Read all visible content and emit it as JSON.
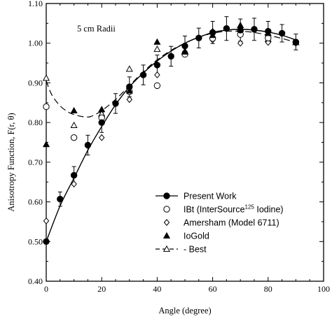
{
  "chart_data": {
    "type": "scatter",
    "title": "",
    "annotation": "5 cm Radii",
    "xlabel": "Angle (degree)",
    "ylabel": "Anisotropy Function, F(r, θ)",
    "xlim": [
      0,
      100
    ],
    "ylim": [
      0.4,
      1.1
    ],
    "xticks": [
      0,
      20,
      40,
      60,
      80,
      100
    ],
    "yticks": [
      0.4,
      0.5,
      0.6,
      0.7,
      0.8,
      0.9,
      1.0,
      1.1
    ],
    "x_tick_labels": [
      "0",
      "20",
      "40",
      "60",
      "80",
      "100"
    ],
    "y_tick_labels": [
      "0.40",
      "0.50",
      "0.60",
      "0.70",
      "0.80",
      "0.90",
      "1.00",
      "1.10"
    ],
    "grid": false,
    "legend_position": "bottom-right",
    "series": [
      {
        "name": "Present Work",
        "marker": "filled-circle",
        "line": "solid",
        "points": [
          {
            "x": 0,
            "y": 0.5,
            "err": 0.0
          },
          {
            "x": 5,
            "y": 0.607,
            "err": 0.018
          },
          {
            "x": 10,
            "y": 0.667,
            "err": 0.022
          },
          {
            "x": 15,
            "y": 0.743,
            "err": 0.025
          },
          {
            "x": 20,
            "y": 0.8,
            "err": 0.025
          },
          {
            "x": 25,
            "y": 0.848,
            "err": 0.025
          },
          {
            "x": 30,
            "y": 0.89,
            "err": 0.025
          },
          {
            "x": 35,
            "y": 0.92,
            "err": 0.025
          },
          {
            "x": 40,
            "y": 0.945,
            "err": 0.025
          },
          {
            "x": 45,
            "y": 0.967,
            "err": 0.025
          },
          {
            "x": 50,
            "y": 0.993,
            "err": 0.025
          },
          {
            "x": 55,
            "y": 1.013,
            "err": 0.025
          },
          {
            "x": 60,
            "y": 1.027,
            "err": 0.028
          },
          {
            "x": 65,
            "y": 1.037,
            "err": 0.03
          },
          {
            "x": 70,
            "y": 1.033,
            "err": 0.028
          },
          {
            "x": 75,
            "y": 1.035,
            "err": 0.028
          },
          {
            "x": 80,
            "y": 1.03,
            "err": 0.025
          },
          {
            "x": 85,
            "y": 1.025,
            "err": 0.022
          },
          {
            "x": 90,
            "y": 1.003,
            "err": 0.02
          }
        ],
        "curve": [
          [
            0,
            0.5
          ],
          [
            5,
            0.59
          ],
          [
            10,
            0.66
          ],
          [
            15,
            0.73
          ],
          [
            20,
            0.79
          ],
          [
            25,
            0.845
          ],
          [
            30,
            0.89
          ],
          [
            35,
            0.925
          ],
          [
            40,
            0.955
          ],
          [
            45,
            0.98
          ],
          [
            50,
            1.0
          ],
          [
            55,
            1.015
          ],
          [
            60,
            1.027
          ],
          [
            65,
            1.033
          ],
          [
            70,
            1.035
          ],
          [
            75,
            1.033
          ],
          [
            80,
            1.028
          ],
          [
            85,
            1.02
          ],
          [
            90,
            1.008
          ]
        ]
      },
      {
        "name": "IBt (InterSource",
        "name_superscript": "125",
        "name_suffix": " Iodine)",
        "marker": "open-circle",
        "points": [
          {
            "x": 0,
            "y": 0.84
          },
          {
            "x": 10,
            "y": 0.762
          },
          {
            "x": 20,
            "y": 0.812
          },
          {
            "x": 30,
            "y": 0.878
          },
          {
            "x": 40,
            "y": 0.893
          },
          {
            "x": 50,
            "y": 0.972
          },
          {
            "x": 60,
            "y": 1.012
          },
          {
            "x": 70,
            "y": 1.022
          },
          {
            "x": 80,
            "y": 1.013
          },
          {
            "x": 90,
            "y": 1.002
          }
        ]
      },
      {
        "name": "Amersham (Model 6711)",
        "marker": "open-diamond",
        "points": [
          {
            "x": 0,
            "y": 0.552
          },
          {
            "x": 10,
            "y": 0.645
          },
          {
            "x": 20,
            "y": 0.762
          },
          {
            "x": 30,
            "y": 0.858
          },
          {
            "x": 40,
            "y": 0.92
          },
          {
            "x": 50,
            "y": 0.978
          },
          {
            "x": 60,
            "y": 1.008
          },
          {
            "x": 70,
            "y": 1.0
          },
          {
            "x": 80,
            "y": 1.002
          },
          {
            "x": 90,
            "y": 1.0
          }
        ]
      },
      {
        "name": "IoGold",
        "marker": "filled-triangle",
        "points": [
          {
            "x": 0,
            "y": 0.745
          },
          {
            "x": 10,
            "y": 0.83
          },
          {
            "x": 20,
            "y": 0.833
          },
          {
            "x": 30,
            "y": 0.88
          },
          {
            "x": 40,
            "y": 1.003
          },
          {
            "x": 50,
            "y": 0.978
          },
          {
            "x": 60,
            "y": 1.02
          },
          {
            "x": 70,
            "y": 1.045
          },
          {
            "x": 80,
            "y": 1.025
          },
          {
            "x": 90,
            "y": 1.002
          }
        ]
      },
      {
        "name": "- Best",
        "marker": "open-triangle",
        "line": "dashed",
        "points": [
          {
            "x": 0,
            "y": 0.912
          },
          {
            "x": 10,
            "y": 0.793
          },
          {
            "x": 20,
            "y": 0.822
          },
          {
            "x": 30,
            "y": 0.935
          },
          {
            "x": 40,
            "y": 0.985
          },
          {
            "x": 50,
            "y": 0.98
          },
          {
            "x": 60,
            "y": 1.03
          },
          {
            "x": 70,
            "y": 1.035
          },
          {
            "x": 80,
            "y": 1.01
          },
          {
            "x": 90,
            "y": 1.002
          }
        ],
        "curve": [
          [
            0,
            0.905
          ],
          [
            2,
            0.87
          ],
          [
            5,
            0.842
          ],
          [
            8,
            0.826
          ],
          [
            10,
            0.82
          ],
          [
            13,
            0.815
          ],
          [
            16,
            0.815
          ],
          [
            20,
            0.83
          ],
          [
            25,
            0.858
          ],
          [
            30,
            0.893
          ],
          [
            35,
            0.928
          ],
          [
            40,
            0.958
          ],
          [
            45,
            0.982
          ],
          [
            50,
            1.0
          ],
          [
            55,
            1.015
          ],
          [
            60,
            1.025
          ],
          [
            65,
            1.03
          ],
          [
            70,
            1.03
          ],
          [
            75,
            1.027
          ],
          [
            80,
            1.02
          ],
          [
            85,
            1.012
          ],
          [
            90,
            1.002
          ]
        ]
      }
    ]
  }
}
